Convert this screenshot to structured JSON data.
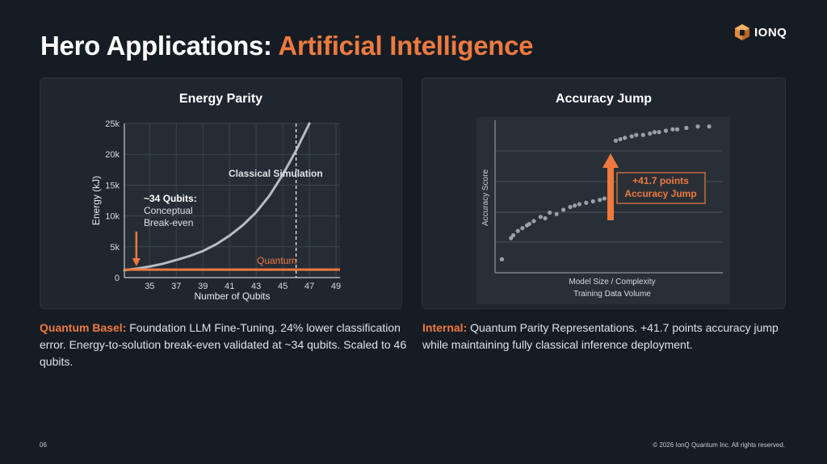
{
  "header": {
    "title_main": "Hero Applications:",
    "title_accent": "Artificial Intelligence",
    "logo_text": "IONQ"
  },
  "colors": {
    "background": "#161c24",
    "accent": "#ee7a3f",
    "panel": "#1f2630",
    "curve": "#b7bcc2"
  },
  "chart_data": [
    {
      "type": "line",
      "title": "Energy Parity",
      "xlabel": "Number of Qubits",
      "ylabel": "Energy (kJ)",
      "x_ticks": [
        35,
        37,
        39,
        41,
        43,
        45,
        47,
        49
      ],
      "y_ticks": [
        0,
        5000,
        10000,
        15000,
        20000,
        25000
      ],
      "y_tick_labels": [
        "0",
        "5k",
        "10k",
        "15k",
        "20k",
        "25k"
      ],
      "xlim": [
        33.1,
        49.3
      ],
      "ylim": [
        0,
        25000
      ],
      "grid": true,
      "series": [
        {
          "name": "Classical Simulation",
          "x": [
            33.1,
            34,
            35,
            36,
            37,
            38,
            39,
            40,
            41,
            42,
            43,
            44,
            45,
            46,
            47
          ],
          "values": [
            1200,
            1450,
            1800,
            2250,
            2850,
            3500,
            4300,
            5400,
            6800,
            8500,
            10600,
            13300,
            16700,
            20600,
            25000
          ]
        },
        {
          "name": "Quantum",
          "x": [
            33.1,
            49.3
          ],
          "values": [
            1300,
            1300
          ]
        }
      ],
      "annotations": {
        "breakeven_title": "~34 Qubits:",
        "breakeven_line1": "Conceptual",
        "breakeven_line2": "Break-even",
        "breakeven_x": 34,
        "scaled_x": 46
      }
    },
    {
      "type": "scatter",
      "title": "Accuracy Jump",
      "xlabel": "Model Size / Complexity",
      "xlabel2": "Training Data Volume",
      "ylabel": "Accuracy Score",
      "grid": true,
      "xlim": [
        0,
        100
      ],
      "ylim": [
        0,
        100
      ],
      "series": [
        {
          "name": "",
          "x": [
            3,
            7,
            8,
            10,
            12,
            14,
            15,
            17,
            20,
            22,
            24,
            27,
            30,
            33,
            35,
            37,
            40,
            43,
            46,
            48,
            51
          ],
          "values": [
            5,
            20,
            22,
            25,
            27,
            29,
            30,
            32,
            35,
            34,
            38,
            37,
            40,
            42,
            43,
            44,
            45,
            46,
            47,
            48,
            49
          ]
        },
        {
          "name": "",
          "x": [
            53,
            55,
            57,
            60,
            62,
            65,
            68,
            70,
            72,
            75,
            78,
            80,
            84,
            89,
            94
          ],
          "values": [
            89,
            90,
            91,
            92,
            93,
            93,
            94,
            95,
            95,
            96,
            97,
            97,
            98,
            99,
            99
          ]
        }
      ],
      "callout_line1": "+41.7 points",
      "callout_line2": "Accuracy Jump"
    }
  ],
  "captions": {
    "left_highlight": "Quantum Basel:",
    "left_text": " Foundation LLM Fine-Tuning. 24% lower classification error. Energy-to-solution break-even validated at ~34 qubits. Scaled to 46 qubits.",
    "right_highlight": "Internal:",
    "right_text": " Quantum Parity Representations. +41.7 points accuracy jump while maintaining fully classical inference deployment."
  },
  "footer": {
    "page_number": "06",
    "copyright": "© 2026 IonQ Quantum Inc. All rights reserved."
  }
}
